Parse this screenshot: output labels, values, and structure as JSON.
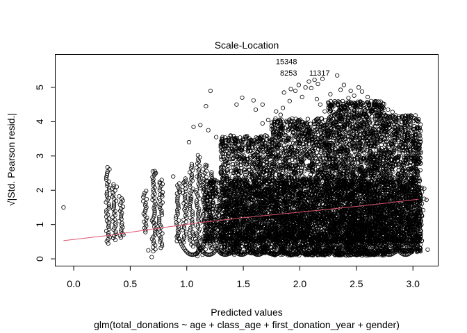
{
  "chart_data": {
    "type": "scatter",
    "title": "Scale-Location",
    "xlabel": "Predicted values",
    "xlabel_sub": "glm(total_donations ~ age + class_age + first_donation_year + gender)",
    "ylabel": "√|Std. Pearson resid.|",
    "xlim": [
      -0.16,
      3.22
    ],
    "ylim": [
      -0.2,
      5.95
    ],
    "x_ticks": [
      0.0,
      0.5,
      1.0,
      1.5,
      2.0,
      2.5,
      3.0
    ],
    "x_tick_labels": [
      "0.0",
      "0.5",
      "1.0",
      "1.5",
      "2.0",
      "2.5",
      "3.0"
    ],
    "y_ticks": [
      0,
      1,
      2,
      3,
      4,
      5
    ],
    "y_tick_labels": [
      "0",
      "1",
      "2",
      "3",
      "4",
      "5"
    ],
    "grid": false,
    "legend": "none",
    "point_style": "open-circle",
    "point_color": "#000000",
    "smoother": {
      "color": "#DF536B",
      "x": [
        -0.09,
        0.3,
        0.7,
        1.1,
        1.5,
        1.9,
        2.3,
        2.7,
        3.05
      ],
      "y": [
        0.53,
        0.68,
        0.87,
        1.05,
        1.2,
        1.33,
        1.46,
        1.6,
        1.74
      ]
    },
    "annotations": [
      {
        "label": "15348",
        "x": 2.0,
        "y": 5.76
      },
      {
        "label": "8253",
        "x": 2.0,
        "y": 5.42
      },
      {
        "label": "11317",
        "x": 2.07,
        "y": 5.42
      }
    ],
    "points": [
      [
        -0.09,
        1.5
      ],
      [
        0.44,
        0.7
      ],
      [
        0.38,
        2.1
      ],
      [
        0.66,
        0.25
      ],
      [
        0.69,
        0.05
      ],
      [
        1.17,
        4.45
      ],
      [
        1.21,
        4.9
      ],
      [
        1.19,
        3.75
      ],
      [
        1.12,
        3.9
      ],
      [
        1.02,
        3.4
      ],
      [
        1.06,
        3.85
      ],
      [
        1.26,
        3.55
      ],
      [
        1.36,
        2.8
      ],
      [
        1.44,
        4.5
      ],
      [
        1.49,
        4.7
      ],
      [
        1.59,
        4.62
      ],
      [
        1.61,
        4.35
      ],
      [
        1.67,
        4.5
      ],
      [
        1.67,
        3.95
      ],
      [
        1.72,
        4.05
      ],
      [
        1.79,
        4.3
      ],
      [
        1.83,
        4.2
      ],
      [
        1.85,
        4.4
      ],
      [
        1.86,
        4.85
      ],
      [
        1.87,
        3.6
      ],
      [
        1.91,
        4.6
      ],
      [
        1.92,
        4.95
      ],
      [
        1.96,
        4.9
      ],
      [
        1.99,
        5.07
      ],
      [
        2.02,
        4.72
      ],
      [
        2.05,
        5.0
      ],
      [
        2.08,
        5.17
      ],
      [
        2.1,
        4.98
      ],
      [
        2.13,
        5.22
      ],
      [
        2.16,
        5.1
      ],
      [
        2.2,
        5.25
      ],
      [
        2.15,
        4.66
      ],
      [
        2.18,
        4.5
      ],
      [
        2.22,
        4.3
      ],
      [
        2.27,
        4.8
      ],
      [
        2.33,
        5.35
      ],
      [
        2.36,
        4.93
      ],
      [
        2.39,
        5.07
      ],
      [
        2.43,
        4.69
      ],
      [
        2.45,
        4.9
      ],
      [
        2.48,
        4.76
      ],
      [
        2.52,
        5.0
      ],
      [
        2.55,
        4.88
      ],
      [
        2.6,
        4.72
      ],
      [
        2.63,
        4.6
      ],
      [
        2.67,
        4.45
      ],
      [
        2.7,
        4.2
      ],
      [
        2.74,
        4.4
      ],
      [
        2.78,
        4.35
      ],
      [
        2.82,
        4.28
      ],
      [
        2.85,
        4.1
      ],
      [
        2.93,
        4.0
      ],
      [
        2.98,
        4.12
      ],
      [
        2.9,
        3.4
      ],
      [
        3.02,
        3.38
      ],
      [
        3.04,
        2.94
      ],
      [
        3.03,
        2.62
      ],
      [
        3.06,
        2.28
      ],
      [
        3.08,
        1.95
      ],
      [
        3.09,
        1.42
      ],
      [
        3.1,
        1.75
      ],
      [
        3.06,
        0.96
      ],
      [
        3.03,
        0.76
      ],
      [
        3.0,
        0.42
      ],
      [
        3.06,
        0.55
      ],
      [
        3.13,
        0.27
      ],
      [
        3.12,
        1.72
      ],
      [
        3.1,
        2.05
      ],
      [
        2.72,
        0.15
      ],
      [
        2.77,
        0.3
      ],
      [
        2.53,
        0.2
      ],
      [
        2.41,
        0.4
      ],
      [
        2.31,
        0.2
      ],
      [
        2.23,
        0.35
      ],
      [
        2.11,
        0.46
      ],
      [
        1.96,
        0.45
      ],
      [
        1.91,
        0.28
      ],
      [
        1.82,
        0.36
      ],
      [
        1.77,
        0.15
      ],
      [
        1.66,
        0.2
      ],
      [
        1.57,
        0.44
      ],
      [
        1.47,
        0.3
      ],
      [
        1.42,
        0.12
      ],
      [
        1.37,
        0.4
      ],
      [
        1.22,
        0.33
      ],
      [
        1.14,
        0.12
      ],
      [
        1.5,
        2.95
      ],
      [
        1.57,
        3.45
      ],
      [
        1.55,
        2.6
      ],
      [
        1.64,
        3.2
      ],
      [
        1.68,
        2.75
      ],
      [
        1.74,
        3.0
      ],
      [
        1.8,
        3.35
      ],
      [
        1.94,
        3.7
      ],
      [
        2.0,
        3.85
      ],
      [
        2.06,
        3.6
      ],
      [
        2.24,
        3.92
      ],
      [
        2.3,
        3.52
      ],
      [
        2.39,
        3.8
      ],
      [
        2.46,
        3.46
      ],
      [
        2.57,
        3.95
      ],
      [
        2.64,
        3.65
      ],
      [
        2.71,
        3.5
      ],
      [
        2.8,
        3.58
      ],
      [
        2.87,
        3.75
      ],
      [
        2.94,
        3.25
      ],
      [
        2.98,
        2.82
      ],
      [
        2.92,
        2.46
      ],
      [
        2.84,
        2.75
      ],
      [
        2.69,
        2.88
      ],
      [
        2.53,
        2.64
      ],
      [
        2.44,
        2.94
      ],
      [
        2.35,
        2.72
      ],
      [
        2.18,
        2.61
      ],
      [
        2.01,
        2.82
      ],
      [
        1.97,
        2.25
      ],
      [
        1.88,
        2.56
      ],
      [
        1.76,
        2.3
      ],
      [
        1.62,
        2.21
      ],
      [
        1.46,
        2.35
      ],
      [
        1.35,
        2.03
      ],
      [
        1.3,
        2.5
      ],
      [
        1.25,
        1.82
      ],
      [
        1.18,
        2.72
      ],
      [
        1.09,
        2.4
      ],
      [
        1.03,
        1.75
      ],
      [
        0.98,
        2.25
      ],
      [
        0.94,
        1.95
      ],
      [
        0.88,
        2.4
      ],
      [
        0.76,
        2.2
      ],
      [
        0.78,
        1.87
      ],
      [
        0.72,
        2.48
      ],
      [
        0.7,
        2.55
      ],
      [
        0.71,
        1.05
      ]
    ],
    "bands": [
      {
        "x": 0.3,
        "y_min": 0.45,
        "y_max": 2.72
      },
      {
        "x": 0.36,
        "y_min": 0.55,
        "y_max": 2.18
      },
      {
        "x": 0.42,
        "y_min": 0.62,
        "y_max": 1.85
      },
      {
        "x": 0.63,
        "y_min": 0.78,
        "y_max": 2.0
      },
      {
        "x": 0.71,
        "y_min": 0.22,
        "y_max": 2.6
      },
      {
        "x": 0.77,
        "y_min": 0.32,
        "y_max": 2.35
      },
      {
        "x": 0.92,
        "y_min": 0.52,
        "y_max": 2.25
      },
      {
        "x": 0.98,
        "y_min": 0.48,
        "y_max": 2.4
      },
      {
        "x": 1.04,
        "y_min": 0.36,
        "y_max": 2.78
      },
      {
        "x": 1.1,
        "y_min": 0.08,
        "y_max": 3.05
      },
      {
        "x": 1.16,
        "y_min": 0.22,
        "y_max": 2.78
      },
      {
        "x": 1.22,
        "y_min": 0.3,
        "y_max": 2.55
      }
    ],
    "clouds": [
      {
        "x": [
          1.3,
          1.75
        ],
        "y": [
          0.15,
          3.6
        ],
        "n": 1200
      },
      {
        "x": [
          1.75,
          2.25
        ],
        "y": [
          0.1,
          4.1
        ],
        "n": 1800
      },
      {
        "x": [
          2.25,
          2.75
        ],
        "y": [
          0.1,
          4.6
        ],
        "n": 2400
      },
      {
        "x": [
          2.75,
          3.07
        ],
        "y": [
          0.2,
          4.2
        ],
        "n": 1200
      },
      {
        "x": [
          1.15,
          3.08
        ],
        "y": [
          0.5,
          2.3
        ],
        "n": 2800
      }
    ]
  }
}
